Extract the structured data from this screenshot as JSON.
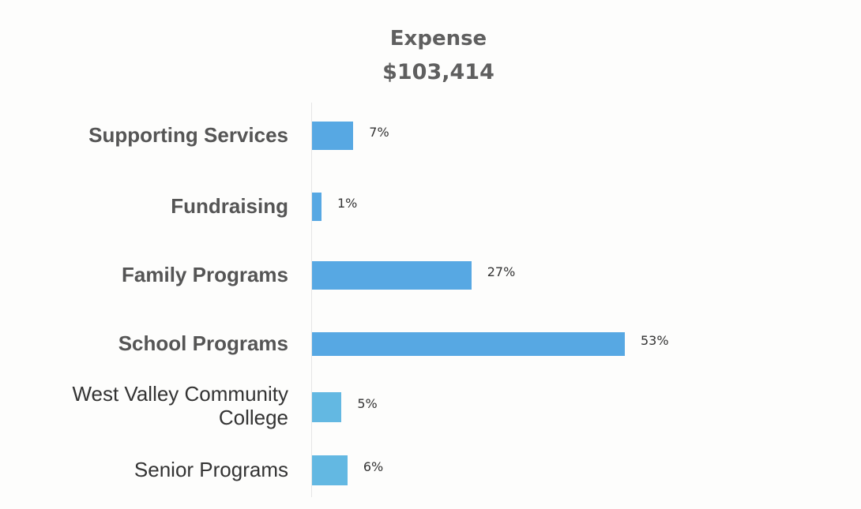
{
  "chart_data": {
    "type": "bar",
    "orientation": "horizontal",
    "title": "Expense",
    "subtitle": "$103,414",
    "categories": [
      "Supporting Services",
      "Fundraising",
      "Family Programs",
      "School Programs",
      "West Valley Community\nCollege",
      "Senior Programs"
    ],
    "values": [
      7,
      1,
      27,
      53,
      5,
      6
    ],
    "data_labels": [
      "7%",
      "1%",
      "27%",
      "53%",
      "5%",
      "6%"
    ],
    "xlim": [
      0,
      100
    ],
    "grid": false,
    "legend": "none",
    "colors": {
      "bar_primary": "#57a8e3",
      "bar_secondary": "#63b8e2"
    }
  }
}
